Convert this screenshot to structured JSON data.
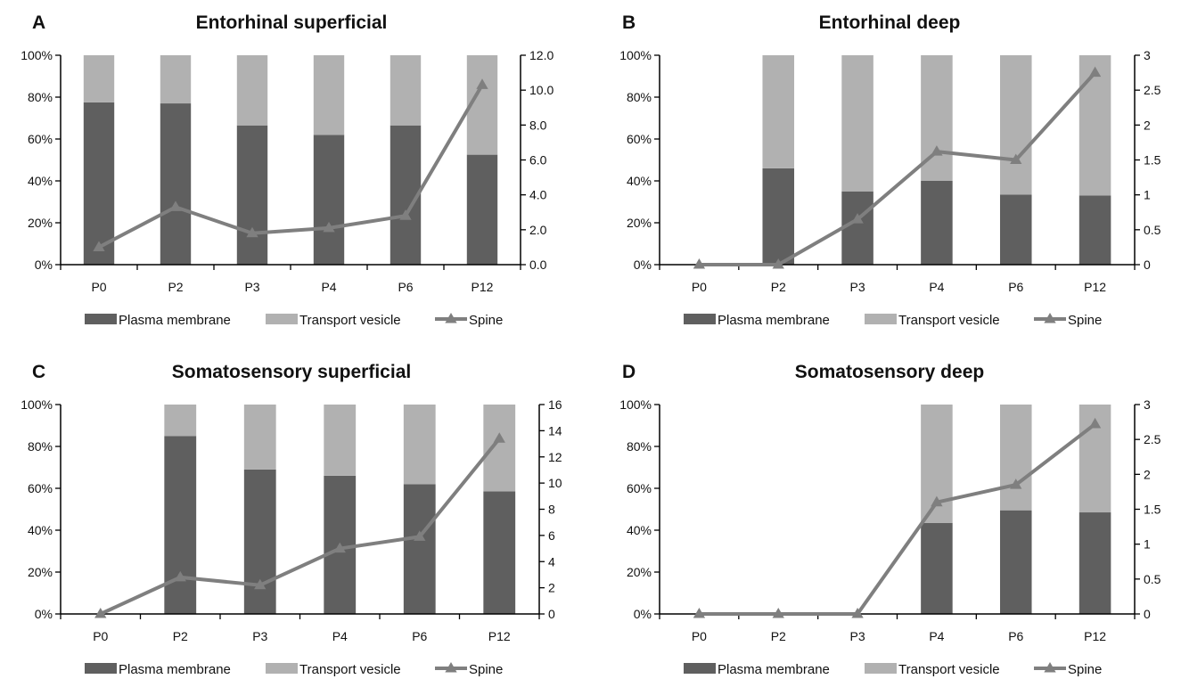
{
  "colors": {
    "plasma_membrane": "#5f5f5f",
    "transport_vesicle": "#b1b1b1",
    "spine_line": "#7f7f7f",
    "axis": "#000000"
  },
  "chart_data": [
    {
      "panel": "A",
      "type": "bar",
      "stacked": true,
      "title": "Entorhinal superficial",
      "categories": [
        "P0",
        "P2",
        "P3",
        "P4",
        "P6",
        "P12"
      ],
      "series": [
        {
          "name": "Plasma membrane",
          "axis": "left",
          "values": [
            77.5,
            77,
            66.5,
            62,
            66.5,
            52.5
          ]
        },
        {
          "name": "Transport vesicle",
          "axis": "left",
          "values": [
            22.5,
            23,
            33.5,
            38,
            33.5,
            47.5
          ]
        },
        {
          "name": "Spine",
          "axis": "right",
          "line": true,
          "values": [
            1.0,
            3.3,
            1.8,
            2.1,
            2.8,
            10.3
          ]
        }
      ],
      "ylim_left": [
        0,
        100
      ],
      "yticks_left": [
        "0%",
        "20%",
        "40%",
        "60%",
        "80%",
        "100%"
      ],
      "ylim_right": [
        0,
        12
      ],
      "yticks_right": [
        "0.0",
        "2.0",
        "4.0",
        "6.0",
        "8.0",
        "10.0",
        "12.0"
      ],
      "legend": [
        "Plasma membrane",
        "Transport vesicle",
        "Spine"
      ],
      "legend_position": "bottom"
    },
    {
      "panel": "B",
      "type": "bar",
      "stacked": true,
      "title": "Entorhinal deep",
      "categories": [
        "P0",
        "P2",
        "P3",
        "P4",
        "P6",
        "P12"
      ],
      "series": [
        {
          "name": "Plasma membrane",
          "axis": "left",
          "values": [
            0,
            46,
            35,
            40,
            33.5,
            33
          ]
        },
        {
          "name": "Transport vesicle",
          "axis": "left",
          "values": [
            0,
            54,
            65,
            60,
            66.5,
            67
          ]
        },
        {
          "name": "Spine",
          "axis": "right",
          "line": true,
          "values": [
            0,
            0,
            0.65,
            1.62,
            1.5,
            2.75
          ]
        }
      ],
      "ylim_left": [
        0,
        100
      ],
      "yticks_left": [
        "0%",
        "20%",
        "40%",
        "60%",
        "80%",
        "100%"
      ],
      "ylim_right": [
        0,
        3
      ],
      "yticks_right": [
        "0",
        "0.5",
        "1",
        "1.5",
        "2",
        "2.5",
        "3"
      ],
      "legend": [
        "Plasma membrane",
        "Transport vesicle",
        "Spine"
      ],
      "legend_position": "bottom"
    },
    {
      "panel": "C",
      "type": "bar",
      "stacked": true,
      "title": "Somatosensory superficial",
      "categories": [
        "P0",
        "P2",
        "P3",
        "P4",
        "P6",
        "P12"
      ],
      "series": [
        {
          "name": "Plasma membrane",
          "axis": "left",
          "values": [
            0,
            85,
            69,
            66,
            62,
            58.5
          ]
        },
        {
          "name": "Transport vesicle",
          "axis": "left",
          "values": [
            0,
            15,
            31,
            34,
            38,
            41.5
          ]
        },
        {
          "name": "Spine",
          "axis": "right",
          "line": true,
          "values": [
            0,
            2.8,
            2.2,
            5.0,
            5.9,
            13.4
          ]
        }
      ],
      "ylim_left": [
        0,
        100
      ],
      "yticks_left": [
        "0%",
        "20%",
        "40%",
        "60%",
        "80%",
        "100%"
      ],
      "ylim_right": [
        0,
        16
      ],
      "yticks_right": [
        "0",
        "2",
        "4",
        "6",
        "8",
        "10",
        "12",
        "14",
        "16"
      ],
      "legend": [
        "Plasma membrane",
        "Transport vesicle",
        "Spine"
      ],
      "legend_position": "bottom"
    },
    {
      "panel": "D",
      "type": "bar",
      "stacked": true,
      "title": "Somatosensory deep",
      "categories": [
        "P0",
        "P2",
        "P3",
        "P4",
        "P6",
        "P12"
      ],
      "series": [
        {
          "name": "Plasma membrane",
          "axis": "left",
          "values": [
            0,
            0,
            0,
            43.5,
            49.5,
            48.5
          ]
        },
        {
          "name": "Transport vesicle",
          "axis": "left",
          "values": [
            0,
            0,
            0,
            56.5,
            50.5,
            51.5
          ]
        },
        {
          "name": "Spine",
          "axis": "right",
          "line": true,
          "values": [
            0,
            0,
            0,
            1.6,
            1.85,
            2.72
          ]
        }
      ],
      "ylim_left": [
        0,
        100
      ],
      "yticks_left": [
        "0%",
        "20%",
        "40%",
        "60%",
        "80%",
        "100%"
      ],
      "ylim_right": [
        0,
        3
      ],
      "yticks_right": [
        "0",
        "0.5",
        "1",
        "1.5",
        "2",
        "2.5",
        "3"
      ],
      "legend": [
        "Plasma membrane",
        "Transport vesicle",
        "Spine"
      ],
      "legend_position": "bottom"
    }
  ]
}
